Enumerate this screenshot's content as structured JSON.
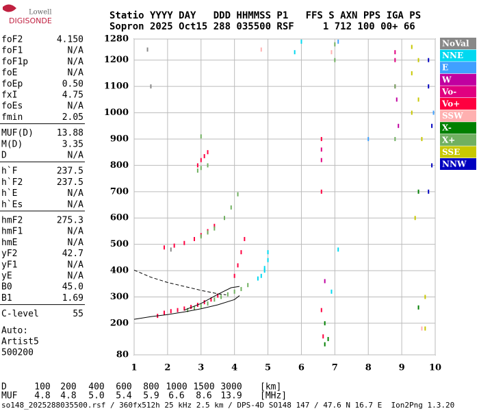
{
  "logo": {
    "top": "Lowell",
    "bottom": "DIGISONDE"
  },
  "header": [
    "Statio YYYY DAY   DDD HHMMSS P1   FFS S AXN PPS IGA PS",
    "Sopron 2025 Oct15 288 035500 RSF     1 712 100 00+ 66"
  ],
  "params": [
    [
      [
        "foF2",
        "4.150"
      ],
      [
        "foF1",
        "N/A"
      ],
      [
        "foF1p",
        "N/A"
      ],
      [
        "foE",
        "N/A"
      ],
      [
        "foEp",
        "0.50"
      ],
      [
        "fxI",
        "4.75"
      ],
      [
        "foEs",
        "N/A"
      ],
      [
        "fmin",
        "2.05"
      ]
    ],
    [
      [
        "MUF(D)",
        "13.88"
      ],
      [
        "M(D)",
        "3.35"
      ],
      [
        "D",
        "N/A"
      ]
    ],
    [
      [
        "h`F",
        "237.5"
      ],
      [
        "h`F2",
        "237.5"
      ],
      [
        "h`E",
        "N/A"
      ],
      [
        "h`Es",
        "N/A"
      ]
    ],
    [
      [
        "hmF2",
        "275.3"
      ],
      [
        "hmF1",
        "N/A"
      ],
      [
        "hmE",
        "N/A"
      ],
      [
        "yF2",
        "42.7"
      ],
      [
        "yF1",
        "N/A"
      ],
      [
        "yE",
        "N/A"
      ],
      [
        "B0",
        "45.0"
      ],
      [
        "B1",
        "1.69"
      ]
    ],
    [
      [
        "C-level",
        "55"
      ]
    ]
  ],
  "auto": [
    "Auto:",
    "Artist5",
    "500200"
  ],
  "chart_data": {
    "type": "scatter",
    "xlim": [
      1,
      10
    ],
    "ylim": [
      80,
      1280
    ],
    "xticks": [
      1,
      2,
      3,
      4,
      5,
      6,
      7,
      8,
      9,
      10
    ],
    "yticks": [
      80,
      200,
      300,
      400,
      500,
      600,
      700,
      800,
      900,
      1000,
      1100,
      1200,
      1280
    ],
    "grid": true,
    "series": [
      {
        "name": "NoVal",
        "color": "#888888",
        "x": [
          1.4,
          1.5,
          2.1
        ],
        "values": [
          1240,
          1100,
          480
        ]
      },
      {
        "name": "NNE",
        "color": "#00d8f0",
        "x": [
          4.8,
          4.9,
          5.0,
          5.0,
          4.9,
          4.7,
          5.8,
          6.0,
          7.1,
          6.9
        ],
        "values": [
          380,
          410,
          440,
          470,
          400,
          370,
          1230,
          1270,
          480,
          320
        ]
      },
      {
        "name": "E",
        "color": "#40a0ff",
        "x": [
          7.1,
          8.0,
          9.95
        ],
        "values": [
          1270,
          900,
          1000
        ]
      },
      {
        "name": "W",
        "color": "#c000a0",
        "x": [
          8.85,
          8.9,
          6.7
        ],
        "values": [
          1050,
          950,
          360
        ]
      },
      {
        "name": "Vo-",
        "color": "#e00080",
        "x": [
          8.8,
          8.8,
          8.8,
          6.6,
          6.6
        ],
        "values": [
          1230,
          1200,
          1100,
          860,
          820
        ]
      },
      {
        "name": "Vo+",
        "color": "#ff0040",
        "x": [
          1.7,
          1.9,
          2.1,
          2.3,
          2.5,
          2.7,
          2.9,
          3.1,
          3.3,
          3.5,
          1.9,
          2.2,
          2.5,
          2.8,
          3.0,
          3.2,
          3.4,
          2.9,
          3.0,
          3.1,
          3.2,
          4.0,
          4.1,
          4.2,
          4.3,
          6.6,
          6.6,
          6.6,
          6.65
        ],
        "values": [
          228,
          240,
          246,
          250,
          256,
          262,
          270,
          280,
          290,
          305,
          488,
          495,
          505,
          520,
          535,
          550,
          570,
          800,
          820,
          835,
          850,
          380,
          420,
          470,
          520,
          900,
          700,
          250,
          150
        ]
      },
      {
        "name": "SSW",
        "color": "#ffb0b0",
        "x": [
          4.8,
          6.9,
          9.6
        ],
        "values": [
          1240,
          1230,
          180
        ]
      },
      {
        "name": "X-",
        "color": "#008000",
        "x": [
          6.7,
          6.7,
          6.8,
          9.5,
          9.5
        ],
        "values": [
          200,
          120,
          140,
          260,
          700
        ]
      },
      {
        "name": "X+",
        "color": "#70b060",
        "x": [
          2.6,
          2.8,
          3.0,
          3.2,
          3.4,
          3.6,
          3.8,
          4.0,
          4.2,
          4.4,
          3.0,
          3.2,
          3.4,
          2.9,
          3.0,
          3.2,
          3.0,
          3.7,
          3.9,
          4.1,
          7.0,
          7.0,
          8.8,
          8.8
        ],
        "values": [
          250,
          258,
          265,
          275,
          290,
          300,
          310,
          320,
          330,
          345,
          530,
          545,
          560,
          780,
          790,
          800,
          910,
          600,
          640,
          690,
          1260,
          1200,
          1100,
          900
        ]
      },
      {
        "name": "SSE",
        "color": "#c8c800",
        "x": [
          9.3,
          9.3,
          9.3,
          9.5,
          9.5,
          9.7,
          9.7,
          9.6,
          9.4
        ],
        "values": [
          1250,
          1150,
          1000,
          1200,
          1050,
          300,
          180,
          900,
          600
        ]
      },
      {
        "name": "NNW",
        "color": "#0000c0",
        "x": [
          9.8,
          9.8,
          9.9,
          9.9,
          9.8
        ],
        "values": [
          1200,
          1100,
          950,
          800,
          700
        ]
      }
    ],
    "traces": [
      {
        "style": "dashed",
        "x": [
          1,
          1.5,
          2,
          2.5,
          3,
          3.5,
          3.75
        ],
        "values": [
          402,
          375,
          355,
          340,
          325,
          312,
          308
        ]
      },
      {
        "style": "solid",
        "x": [
          1,
          1.5,
          2,
          2.5,
          3,
          3.5,
          4.0,
          4.15
        ],
        "values": [
          215,
          225,
          233,
          243,
          255,
          270,
          290,
          305
        ]
      },
      {
        "style": "solid",
        "x": [
          2.5,
          3.0,
          3.5,
          3.9,
          4.15
        ],
        "values": [
          250,
          275,
          310,
          335,
          340
        ]
      }
    ]
  },
  "muf_table": {
    "rows": [
      [
        "D",
        "100",
        "200",
        "400",
        "600",
        "800",
        "1000",
        "1500",
        "3000",
        "[km]"
      ],
      [
        "MUF",
        "4.8",
        "4.8",
        "5.0",
        "5.4",
        "5.9",
        "6.6",
        "8.6",
        "13.9",
        "[MHz]"
      ]
    ]
  },
  "footer": "so148_2025288035500.rsf / 360fx512h 25 kHz 2.5 km / DPS-4D SO148 147 / 47.6 N 16.7 E  Ion2Png 1.3.20"
}
